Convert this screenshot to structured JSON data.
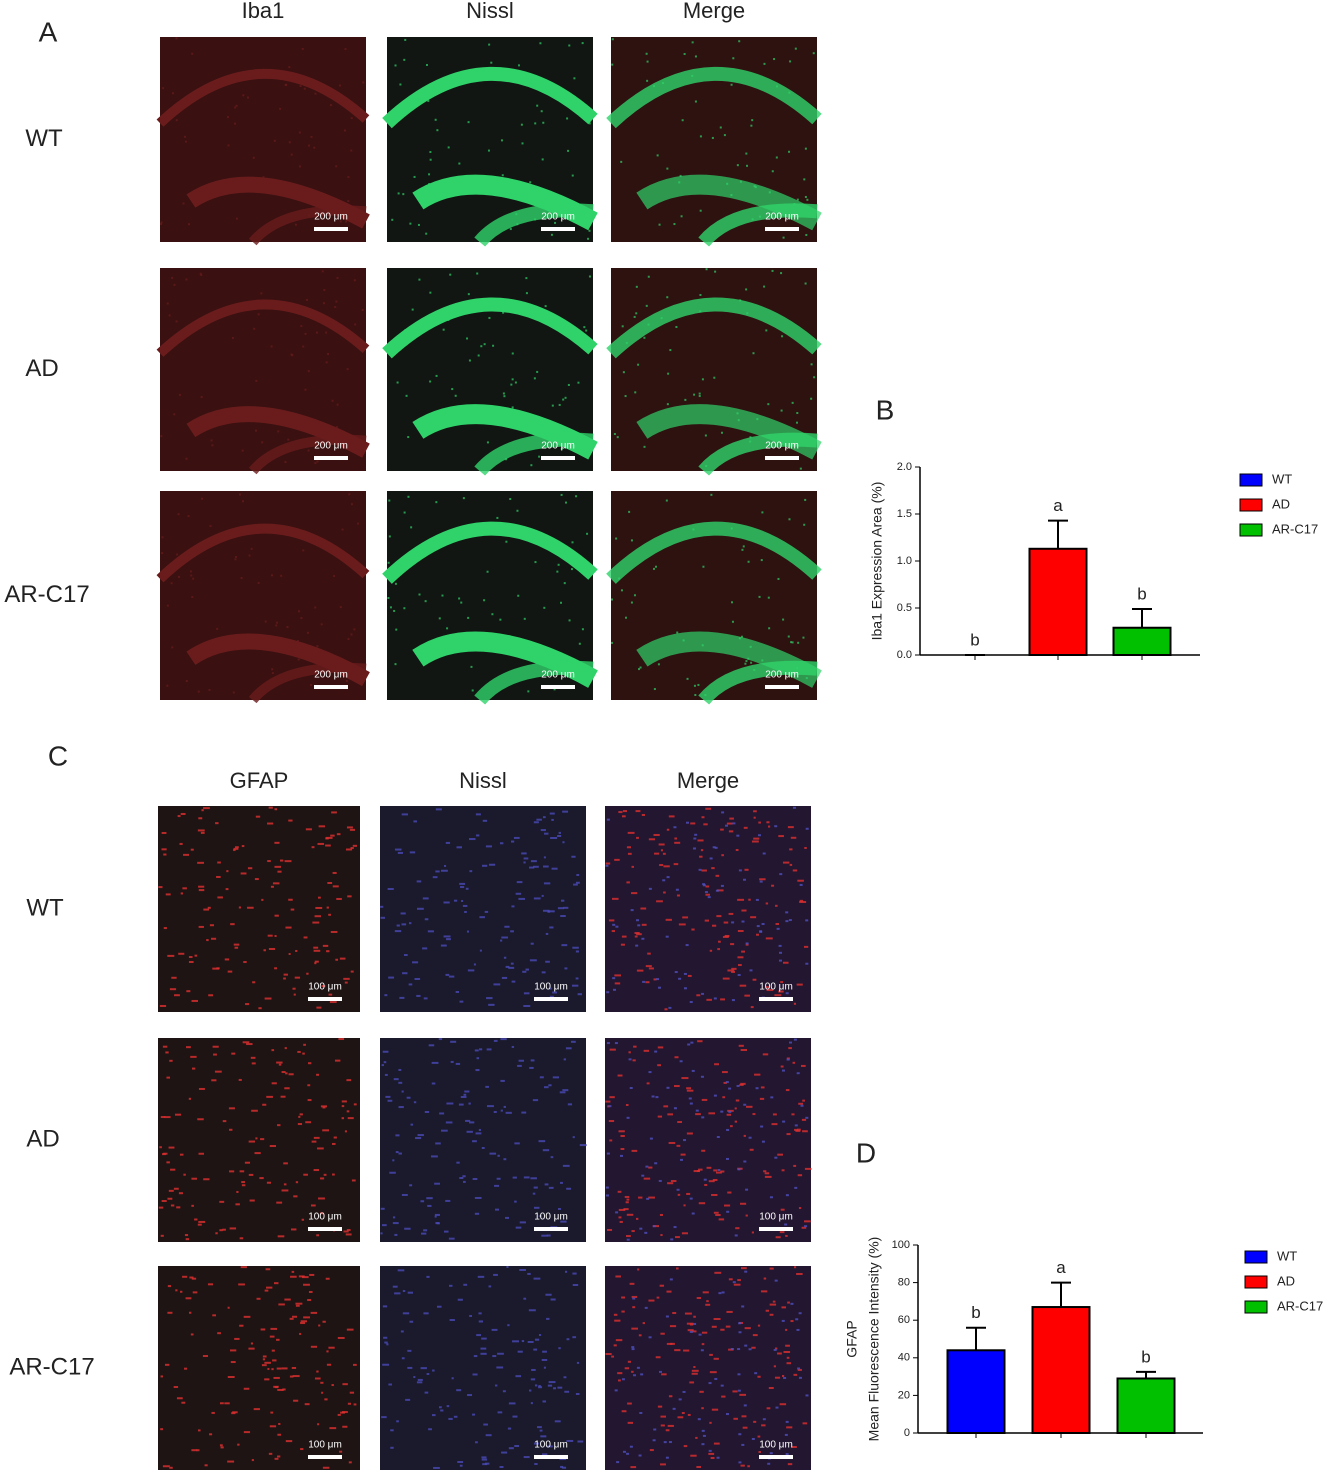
{
  "panel_a": {
    "letter": "A",
    "columns": [
      "Iba1",
      "Nissl",
      "Merge"
    ],
    "rows": [
      "WT",
      "AD",
      "AR-C17"
    ],
    "scale_bar": "200 μm"
  },
  "panel_c": {
    "letter": "C",
    "columns": [
      "GFAP",
      "Nissl",
      "Merge"
    ],
    "rows": [
      "WT",
      "AD",
      "AR-C17"
    ],
    "scale_bar": "100 μm"
  },
  "chart_data": [
    {
      "type": "bar",
      "letter": "B",
      "ylabel": [
        "Iba1 Expression Area (%)"
      ],
      "categories": [
        "WT",
        "AD",
        "AR-C17"
      ],
      "values": [
        0,
        1.13,
        0.29
      ],
      "errors": [
        0,
        0.3,
        0.2
      ],
      "annotations": [
        "b",
        "a",
        "b"
      ],
      "colors": [
        "#0000ff",
        "#ff0000",
        "#00c000"
      ],
      "ylim": [
        0,
        2
      ],
      "yticks": [
        {
          "value": 0,
          "label": "0.0"
        },
        0.5,
        {
          "value": 1,
          "label": "1.0"
        },
        1.5,
        {
          "value": 2,
          "label": "2.0"
        }
      ],
      "legend": "right"
    },
    {
      "type": "bar",
      "letter": "D",
      "ylabel": [
        "GFAP",
        "Mean Fluorescence Intensity (%)"
      ],
      "categories": [
        "WT",
        "AD",
        "AR-C17"
      ],
      "values": [
        44,
        67,
        29
      ],
      "errors": [
        12,
        13,
        3.5
      ],
      "annotations": [
        "b",
        "a",
        "b"
      ],
      "colors": [
        "#0000ff",
        "#ff0000",
        "#00c000"
      ],
      "ylim": [
        0,
        100
      ],
      "yticks": [
        0,
        20,
        40,
        60,
        80,
        100
      ],
      "legend": "right"
    }
  ]
}
